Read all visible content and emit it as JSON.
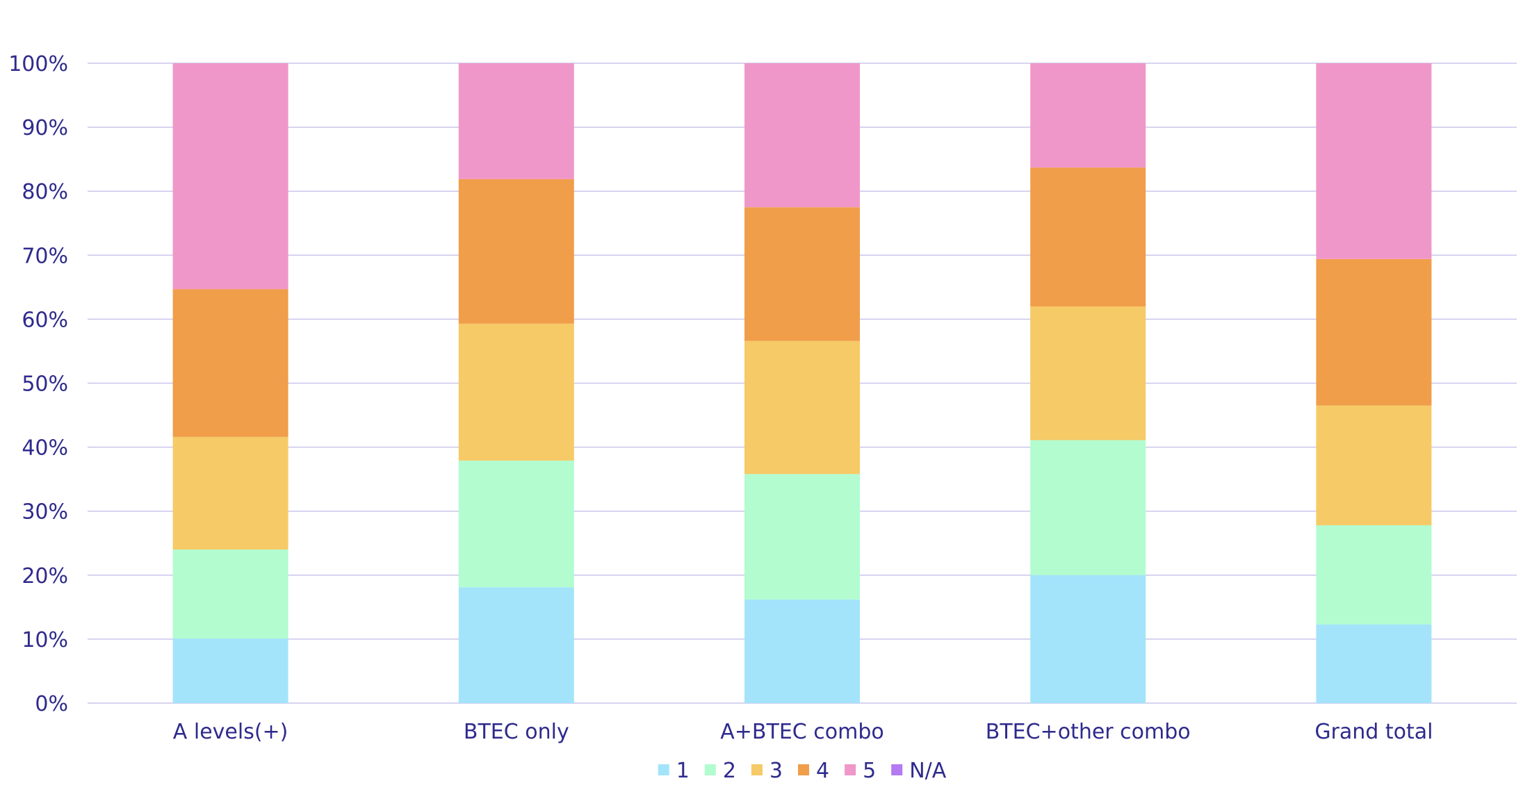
{
  "chart_data": {
    "type": "bar",
    "stacked": true,
    "categories": [
      "A levels(+)",
      "BTEC only",
      "A+BTEC combo",
      "BTEC+other combo",
      "Grand total"
    ],
    "series": [
      {
        "name": "1",
        "color": "#a3e4fb",
        "values": [
          10.1,
          18.1,
          16.2,
          20.0,
          12.3
        ]
      },
      {
        "name": "2",
        "color": "#b2fcd0",
        "values": [
          13.9,
          19.8,
          19.6,
          21.1,
          15.5
        ]
      },
      {
        "name": "3",
        "color": "#f6ca66",
        "values": [
          17.6,
          21.4,
          20.8,
          20.9,
          18.7
        ]
      },
      {
        "name": "4",
        "color": "#f09e4a",
        "values": [
          23.1,
          22.6,
          20.9,
          21.7,
          22.9
        ]
      },
      {
        "name": "5",
        "color": "#f097c9",
        "values": [
          35.3,
          18.1,
          22.5,
          16.3,
          30.6
        ]
      },
      {
        "name": "N/A",
        "color": "#b37af2",
        "values": [
          0,
          0,
          0,
          0,
          0
        ]
      }
    ],
    "y_ticks": [
      "0%",
      "10%",
      "20%",
      "30%",
      "40%",
      "50%",
      "60%",
      "70%",
      "80%",
      "90%",
      "100%"
    ],
    "ylim": [
      0,
      100
    ],
    "grid": true,
    "legend_position": "bottom-center"
  }
}
